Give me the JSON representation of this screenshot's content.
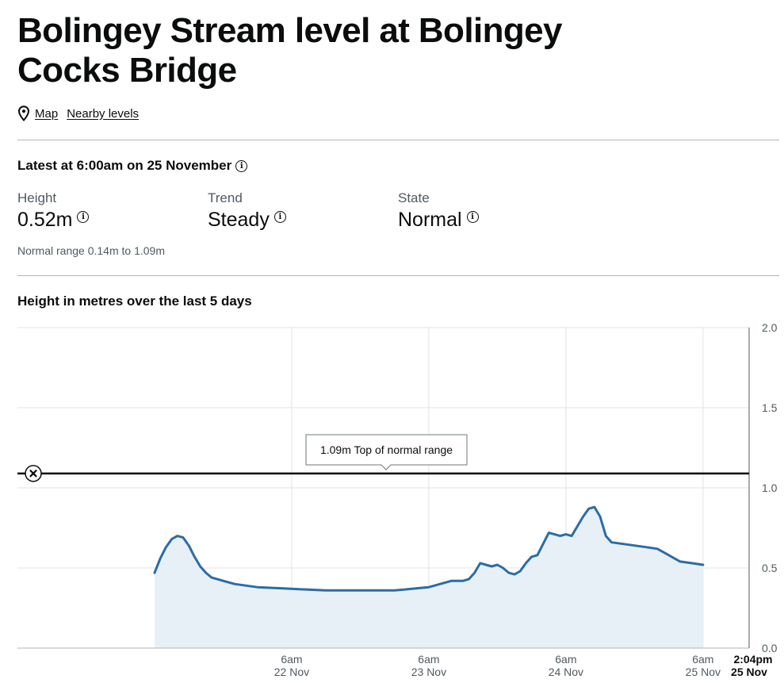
{
  "page": {
    "title": "Bolingey Stream level at Bolingey Cocks Bridge",
    "links": {
      "map": "Map",
      "nearby": "Nearby levels"
    },
    "latest": "Latest at 6:00am on 25 November",
    "metrics": [
      {
        "label": "Height",
        "value": "0.52m"
      },
      {
        "label": "Trend",
        "value": "Steady"
      },
      {
        "label": "State",
        "value": "Normal"
      }
    ],
    "normal_range": "Normal range 0.14m to 1.09m",
    "chart_heading": "Height in metres over the last 5 days"
  },
  "colors": {
    "line": "#2b6ca6",
    "fill": "#e8f0f7",
    "threshold": "#0b0c0c",
    "grid": "#e2e3e4"
  },
  "icons": {
    "location": "map-pin-icon",
    "info": "info-icon",
    "remove": "close-icon"
  },
  "chart_data": {
    "type": "area",
    "x_unit": "hours",
    "x_range": [
      "2023-11-20T06:00",
      "2023-11-25T14:04"
    ],
    "ylim": [
      0,
      2
    ],
    "y_ticks": [
      0.0,
      0.5,
      1.0,
      1.5,
      2.0
    ],
    "y_tick_labels": [
      "0.0",
      "0.5",
      "1.0",
      "1.5",
      "2.0"
    ],
    "x_ticks": [
      {
        "x": "2023-11-22T06:00",
        "line1": "6am",
        "line2": "22 Nov"
      },
      {
        "x": "2023-11-23T06:00",
        "line1": "6am",
        "line2": "23 Nov"
      },
      {
        "x": "2023-11-24T06:00",
        "line1": "6am",
        "line2": "24 Nov"
      },
      {
        "x": "2023-11-25T06:00",
        "line1": "6am",
        "line2": "25 Nov"
      }
    ],
    "now": {
      "x": "2023-11-25T14:04",
      "line1": "2:04pm",
      "line2": "25 Nov"
    },
    "threshold": {
      "value": 1.09,
      "label": "1.09m Top of normal range"
    },
    "grid": true,
    "series": [
      {
        "points": [
          [
            "2023-11-21T06:00",
            0.47
          ],
          [
            "2023-11-21T07:00",
            0.56
          ],
          [
            "2023-11-21T08:00",
            0.63
          ],
          [
            "2023-11-21T09:00",
            0.68
          ],
          [
            "2023-11-21T10:00",
            0.7
          ],
          [
            "2023-11-21T11:00",
            0.69
          ],
          [
            "2023-11-21T12:00",
            0.64
          ],
          [
            "2023-11-21T13:00",
            0.57
          ],
          [
            "2023-11-21T14:00",
            0.51
          ],
          [
            "2023-11-21T15:00",
            0.47
          ],
          [
            "2023-11-21T16:00",
            0.44
          ],
          [
            "2023-11-21T18:00",
            0.42
          ],
          [
            "2023-11-21T20:00",
            0.4
          ],
          [
            "2023-11-22T00:00",
            0.38
          ],
          [
            "2023-11-22T06:00",
            0.37
          ],
          [
            "2023-11-22T12:00",
            0.36
          ],
          [
            "2023-11-22T18:00",
            0.36
          ],
          [
            "2023-11-23T00:00",
            0.36
          ],
          [
            "2023-11-23T03:00",
            0.37
          ],
          [
            "2023-11-23T06:00",
            0.38
          ],
          [
            "2023-11-23T08:00",
            0.4
          ],
          [
            "2023-11-23T10:00",
            0.42
          ],
          [
            "2023-11-23T12:00",
            0.42
          ],
          [
            "2023-11-23T13:00",
            0.43
          ],
          [
            "2023-11-23T14:00",
            0.47
          ],
          [
            "2023-11-23T15:00",
            0.53
          ],
          [
            "2023-11-23T16:00",
            0.52
          ],
          [
            "2023-11-23T17:00",
            0.51
          ],
          [
            "2023-11-23T18:00",
            0.52
          ],
          [
            "2023-11-23T19:00",
            0.5
          ],
          [
            "2023-11-23T20:00",
            0.47
          ],
          [
            "2023-11-23T21:00",
            0.46
          ],
          [
            "2023-11-23T22:00",
            0.48
          ],
          [
            "2023-11-23T23:00",
            0.53
          ],
          [
            "2023-11-24T00:00",
            0.57
          ],
          [
            "2023-11-24T01:00",
            0.58
          ],
          [
            "2023-11-24T02:00",
            0.65
          ],
          [
            "2023-11-24T03:00",
            0.72
          ],
          [
            "2023-11-24T04:00",
            0.71
          ],
          [
            "2023-11-24T05:00",
            0.7
          ],
          [
            "2023-11-24T06:00",
            0.71
          ],
          [
            "2023-11-24T07:00",
            0.7
          ],
          [
            "2023-11-24T08:00",
            0.76
          ],
          [
            "2023-11-24T09:00",
            0.82
          ],
          [
            "2023-11-24T10:00",
            0.87
          ],
          [
            "2023-11-24T11:00",
            0.88
          ],
          [
            "2023-11-24T12:00",
            0.82
          ],
          [
            "2023-11-24T13:00",
            0.7
          ],
          [
            "2023-11-24T14:00",
            0.66
          ],
          [
            "2023-11-24T16:00",
            0.65
          ],
          [
            "2023-11-24T18:00",
            0.64
          ],
          [
            "2023-11-24T20:00",
            0.63
          ],
          [
            "2023-11-24T22:00",
            0.62
          ],
          [
            "2023-11-25T00:00",
            0.58
          ],
          [
            "2023-11-25T01:00",
            0.56
          ],
          [
            "2023-11-25T02:00",
            0.54
          ],
          [
            "2023-11-25T04:00",
            0.53
          ],
          [
            "2023-11-25T06:00",
            0.52
          ]
        ]
      }
    ]
  }
}
